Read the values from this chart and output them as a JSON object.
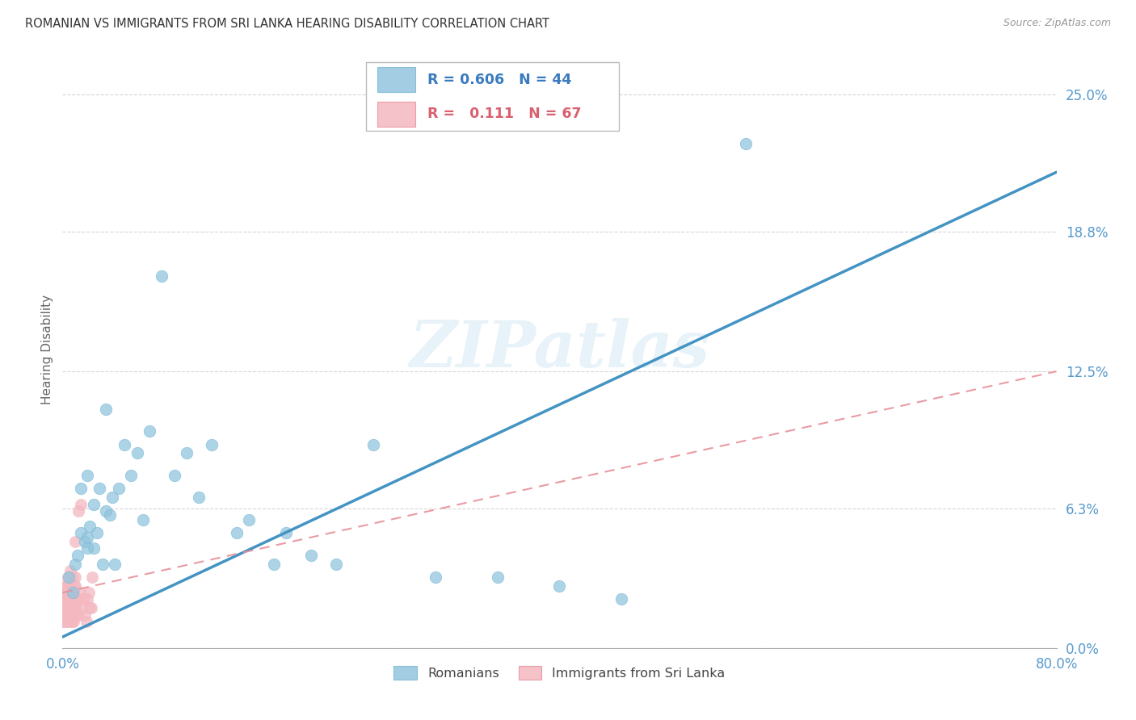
{
  "title": "ROMANIAN VS IMMIGRANTS FROM SRI LANKA HEARING DISABILITY CORRELATION CHART",
  "source": "Source: ZipAtlas.com",
  "ylabel_label": "Hearing Disability",
  "ytick_values": [
    0.0,
    6.3,
    12.5,
    18.8,
    25.0
  ],
  "xlim": [
    0.0,
    80.0
  ],
  "ylim": [
    0.0,
    27.0
  ],
  "legend_blue_r": "0.606",
  "legend_blue_n": "44",
  "legend_pink_r": "0.111",
  "legend_pink_n": "67",
  "blue_color": "#92c5de",
  "pink_color": "#f4b8c1",
  "blue_line_color": "#4393c3",
  "pink_line_color": "#d6604d",
  "watermark": "ZIPatlas",
  "background_color": "#ffffff",
  "grid_color": "#cccccc",
  "axis_label_color": "#5599cc",
  "title_color": "#333333",
  "blue_line_x0": 0.0,
  "blue_line_y0": 0.5,
  "blue_line_x1": 80.0,
  "blue_line_y1": 21.5,
  "pink_line_x0": 0.0,
  "pink_line_y0": 2.5,
  "pink_line_x1": 80.0,
  "pink_line_y1": 12.5,
  "blue_scatter_x": [
    0.5,
    0.8,
    1.0,
    1.2,
    1.5,
    1.5,
    1.8,
    2.0,
    2.0,
    2.2,
    2.5,
    2.5,
    2.8,
    3.0,
    3.2,
    3.5,
    3.8,
    4.0,
    4.2,
    4.5,
    5.0,
    5.5,
    6.0,
    6.5,
    7.0,
    8.0,
    9.0,
    10.0,
    11.0,
    12.0,
    14.0,
    15.0,
    17.0,
    18.0,
    20.0,
    22.0,
    25.0,
    30.0,
    35.0,
    40.0,
    45.0,
    55.0,
    2.0,
    3.5
  ],
  "blue_scatter_y": [
    3.2,
    2.5,
    3.8,
    4.2,
    7.2,
    5.2,
    4.8,
    5.0,
    7.8,
    5.5,
    6.5,
    4.5,
    5.2,
    7.2,
    3.8,
    6.2,
    6.0,
    6.8,
    3.8,
    7.2,
    9.2,
    7.8,
    8.8,
    5.8,
    9.8,
    16.8,
    7.8,
    8.8,
    6.8,
    9.2,
    5.2,
    5.8,
    3.8,
    5.2,
    4.2,
    3.8,
    9.2,
    3.2,
    3.2,
    2.8,
    2.2,
    22.8,
    4.5,
    10.8
  ],
  "pink_scatter_x": [
    0.05,
    0.08,
    0.1,
    0.12,
    0.15,
    0.18,
    0.2,
    0.22,
    0.25,
    0.28,
    0.3,
    0.32,
    0.35,
    0.38,
    0.4,
    0.42,
    0.45,
    0.48,
    0.5,
    0.52,
    0.55,
    0.58,
    0.6,
    0.62,
    0.65,
    0.68,
    0.7,
    0.72,
    0.75,
    0.78,
    0.8,
    0.82,
    0.85,
    0.88,
    0.9,
    0.92,
    0.95,
    0.98,
    1.0,
    1.05,
    1.1,
    1.15,
    1.2,
    1.3,
    1.4,
    1.5,
    1.6,
    1.8,
    2.0,
    2.2,
    2.4,
    0.15,
    0.25,
    0.35,
    0.45,
    0.55,
    0.65,
    0.75,
    0.85,
    0.95,
    1.05,
    1.25,
    1.45,
    1.7,
    1.9,
    2.1,
    2.3
  ],
  "pink_scatter_y": [
    1.2,
    1.8,
    2.2,
    1.5,
    2.8,
    2.2,
    1.2,
    2.5,
    1.8,
    2.5,
    1.5,
    2.2,
    2.8,
    2.0,
    1.2,
    2.5,
    3.2,
    1.8,
    2.2,
    1.5,
    2.8,
    1.2,
    3.5,
    1.8,
    2.2,
    1.5,
    2.8,
    2.0,
    1.2,
    2.5,
    3.2,
    1.5,
    2.2,
    1.8,
    2.5,
    1.2,
    2.8,
    2.0,
    4.8,
    3.2,
    1.8,
    2.2,
    1.5,
    6.2,
    2.5,
    6.5,
    2.2,
    1.5,
    2.2,
    1.8,
    3.2,
    2.0,
    2.5,
    2.8,
    1.5,
    1.8,
    2.2,
    1.2,
    2.5,
    2.0,
    2.8,
    1.5,
    1.8,
    2.2,
    1.2,
    2.5,
    1.8
  ]
}
